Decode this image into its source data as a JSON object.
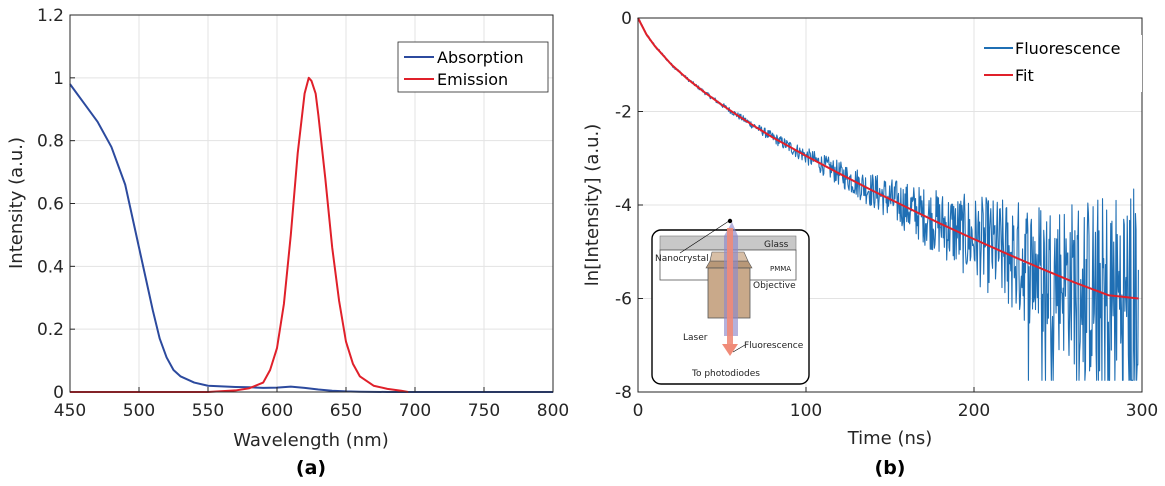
{
  "chart_data": [
    {
      "type": "line",
      "panel_label": "(a)",
      "xlabel": "Wavelength (nm)",
      "ylabel": "Intensity  (a.u.)",
      "xlim": [
        450,
        800
      ],
      "ylim": [
        0,
        1.2
      ],
      "xticks": [
        450,
        500,
        550,
        600,
        650,
        700,
        750,
        800
      ],
      "yticks": [
        0,
        0.2,
        0.4,
        0.6,
        0.8,
        1,
        1.2
      ],
      "xtick_labels": [
        "450",
        "500",
        "550",
        "600",
        "650",
        "700",
        "750",
        "800"
      ],
      "ytick_labels": [
        "0",
        "0.2",
        "0.4",
        "0.6",
        "0.8",
        "1",
        "1.2"
      ],
      "grid": true,
      "legend_position": "top-right",
      "series": [
        {
          "name": "Absorption",
          "color": "#2c4a9e",
          "x": [
            450,
            460,
            470,
            480,
            490,
            500,
            505,
            510,
            515,
            520,
            525,
            530,
            540,
            550,
            560,
            570,
            580,
            590,
            600,
            610,
            620,
            630,
            640,
            650,
            660,
            680,
            700,
            750,
            800
          ],
          "y": [
            0.98,
            0.92,
            0.86,
            0.78,
            0.66,
            0.46,
            0.36,
            0.26,
            0.17,
            0.11,
            0.07,
            0.05,
            0.03,
            0.02,
            0.018,
            0.016,
            0.015,
            0.013,
            0.014,
            0.017,
            0.013,
            0.008,
            0.004,
            0.002,
            0.001,
            0.0,
            0.0,
            0.0,
            0.0
          ]
        },
        {
          "name": "Emission",
          "color": "#e0202a",
          "x": [
            450,
            500,
            550,
            570,
            580,
            590,
            595,
            600,
            605,
            610,
            615,
            620,
            623,
            625,
            628,
            630,
            635,
            640,
            645,
            650,
            655,
            660,
            670,
            680,
            690,
            695
          ],
          "y": [
            0.0,
            0.0,
            0.0,
            0.005,
            0.012,
            0.03,
            0.07,
            0.14,
            0.28,
            0.5,
            0.76,
            0.95,
            1.0,
            0.99,
            0.95,
            0.88,
            0.68,
            0.46,
            0.29,
            0.16,
            0.09,
            0.05,
            0.02,
            0.01,
            0.004,
            0.0
          ]
        }
      ]
    },
    {
      "type": "line",
      "panel_label": "(b)",
      "xlabel": "Time (ns)",
      "ylabel": "ln[Intensity] (a.u.)",
      "xlim": [
        0,
        300
      ],
      "ylim": [
        -8,
        0
      ],
      "xticks": [
        0,
        100,
        200,
        300
      ],
      "yticks": [
        -8,
        -6,
        -4,
        -2,
        0
      ],
      "xtick_labels": [
        "0",
        "100",
        "200",
        "300"
      ],
      "ytick_labels": [
        "-8",
        "-6",
        "-4",
        "-2",
        "0"
      ],
      "grid": true,
      "legend_position": "top-right",
      "series": [
        {
          "name": "Fluorescence",
          "color": "#1f6fb4",
          "model": "fit plus noise growing with time; clipped at -7.75 beyond 220 ns",
          "floor": -7.75
        },
        {
          "name": "Fit",
          "color": "#e0202a",
          "x": [
            0,
            5,
            10,
            20,
            30,
            40,
            50,
            60,
            70,
            80,
            90,
            100,
            120,
            140,
            160,
            180,
            200,
            220,
            240,
            260,
            280,
            298
          ],
          "y": [
            0.0,
            -0.35,
            -0.6,
            -1.0,
            -1.32,
            -1.6,
            -1.86,
            -2.1,
            -2.33,
            -2.55,
            -2.75,
            -2.95,
            -3.33,
            -3.7,
            -4.05,
            -4.4,
            -4.73,
            -5.05,
            -5.36,
            -5.66,
            -5.93,
            -6.0
          ]
        }
      ],
      "inset": {
        "glass_label": "Glass",
        "pmma_label": "PMMA",
        "nanocrystal_label": "Nanocrystal",
        "objective_label": "Objective",
        "laser_label": "Laser",
        "fluorescence_label": "Fluorescence",
        "photodiodes_label": "To photodiodes",
        "colors": {
          "glass": "#c8c8c8",
          "objective": "#c9a98a",
          "laser": "#8d87c9",
          "fluor": "#f08b78"
        }
      }
    }
  ]
}
